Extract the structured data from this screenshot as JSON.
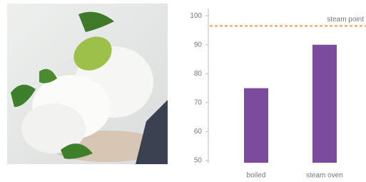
{
  "chart_data": {
    "type": "bar",
    "categories": [
      "boiled",
      "steam oven"
    ],
    "values": [
      75,
      90
    ],
    "color": "#7b4c9e",
    "ylim": [
      50,
      102
    ],
    "yticks": [
      50,
      60,
      70,
      80,
      90,
      100
    ],
    "reference_line": {
      "value": 96.5,
      "label": "steam point",
      "color": "#f0a04b"
    }
  }
}
